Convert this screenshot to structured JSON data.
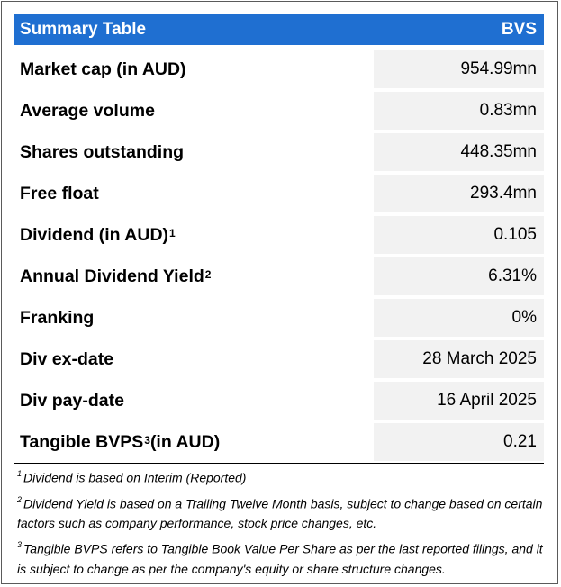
{
  "header": {
    "title": "Summary Table",
    "ticker": "BVS"
  },
  "rows": [
    {
      "label": "Market cap (in AUD)",
      "sup": "",
      "value": "954.99mn"
    },
    {
      "label": "Average volume",
      "sup": "",
      "value": "0.83mn"
    },
    {
      "label": "Shares outstanding",
      "sup": "",
      "value": "448.35mn"
    },
    {
      "label": "Free float",
      "sup": "",
      "value": "293.4mn"
    },
    {
      "label": "Dividend (in AUD)",
      "sup": "1",
      "value": "0.105"
    },
    {
      "label": "Annual Dividend Yield",
      "sup": "2",
      "value": "6.31%"
    },
    {
      "label": "Franking",
      "sup": "",
      "value": "0%"
    },
    {
      "label": "Div ex-date",
      "sup": "",
      "value": "28 March 2025"
    },
    {
      "label": "Div pay-date",
      "sup": "",
      "value": "16 April 2025"
    },
    {
      "label": "Tangible BVPS",
      "sup": "3",
      "label_suffix": " (in AUD)",
      "value": "0.21"
    }
  ],
  "footnotes": [
    {
      "num": "1",
      "text": "Dividend is based on Interim (Reported)"
    },
    {
      "num": "2",
      "text": "Dividend Yield is based on a Trailing Twelve Month basis, subject to change based on certain factors such as company performance, stock price changes, etc."
    },
    {
      "num": "3",
      "text": "Tangible BVPS refers to Tangible Book Value Per Share as per the last reported filings, and it is subject to change as per the company's equity or share structure changes."
    }
  ]
}
